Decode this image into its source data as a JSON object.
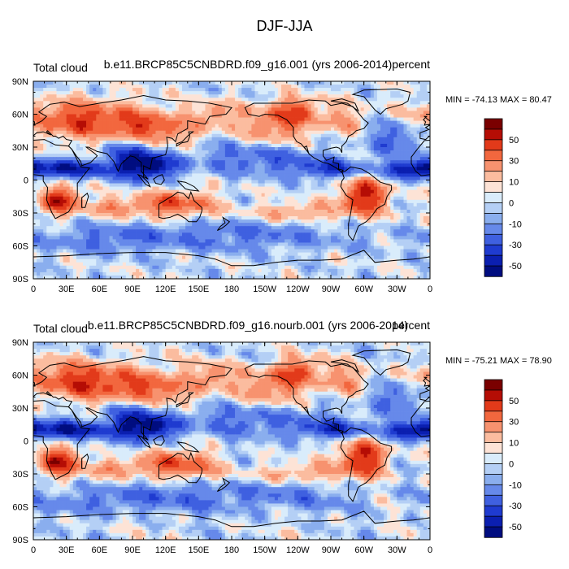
{
  "figure_title": "DJF-JJA",
  "colorbar": {
    "labels": [
      "50",
      "30",
      "10",
      "0",
      "-10",
      "-30",
      "-50"
    ],
    "colors": [
      "#7a0000",
      "#b50d05",
      "#e23a1a",
      "#f2673e",
      "#f7926f",
      "#fbbc9f",
      "#fde3d6",
      "#d9ecfb",
      "#b4cff5",
      "#8aaeee",
      "#6689ea",
      "#3f60e0",
      "#1f3bd0",
      "#0b1fb0",
      "#000d80"
    ]
  },
  "chart_data": [
    {
      "type": "heatmap",
      "left_title": "Total cloud",
      "center_title": "b.e11.BRCP85C5CNBDRD.f09_g16.001 (yrs 2006-2014)",
      "right_title": "percent",
      "stats": "MIN = -74.13 MAX =  80.47",
      "x_ticks": [
        "0",
        "30E",
        "60E",
        "90E",
        "120E",
        "150E",
        "180",
        "150W",
        "120W",
        "90W",
        "60W",
        "30W",
        "0"
      ],
      "y_ticks": [
        "90N",
        "60N",
        "30N",
        "0",
        "30S",
        "60S",
        "90S"
      ],
      "x_range": [
        0,
        360
      ],
      "y_range": [
        -90,
        90
      ],
      "value_range": [
        -74.13,
        80.47
      ],
      "units": "percent"
    },
    {
      "type": "heatmap",
      "left_title": "Total cloud",
      "center_title": "b.e11.BRCP85C5CNBDRD.f09_g16.nourb.001 (yrs 2006-2014)",
      "right_title": "percent",
      "stats": "MIN = -75.21 MAX =  78.90",
      "x_ticks": [
        "0",
        "30E",
        "60E",
        "90E",
        "120E",
        "150E",
        "180",
        "150W",
        "120W",
        "90W",
        "60W",
        "30W",
        "0"
      ],
      "y_ticks": [
        "90N",
        "60N",
        "30N",
        "0",
        "30S",
        "60S",
        "90S"
      ],
      "x_range": [
        0,
        360
      ],
      "y_range": [
        -90,
        90
      ],
      "value_range": [
        -75.21,
        78.9
      ],
      "units": "percent"
    }
  ]
}
